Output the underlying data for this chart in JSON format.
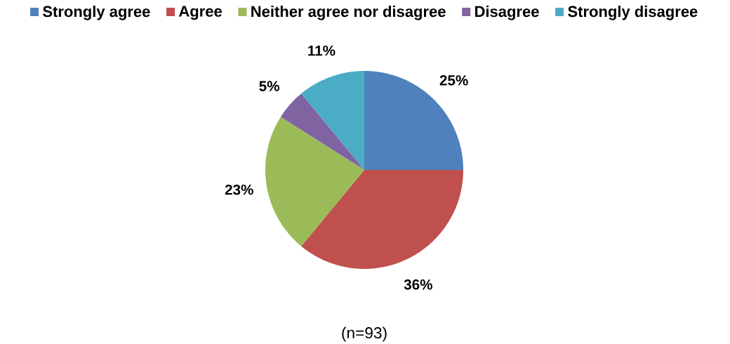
{
  "chart_data": {
    "type": "pie",
    "categories": [
      "Strongly agree",
      "Agree",
      "Neither agree nor disagree",
      "Disagree",
      "Strongly disagree"
    ],
    "values": [
      25,
      36,
      23,
      5,
      11
    ],
    "colors": [
      "#4f81bd",
      "#c0504d",
      "#9bbb59",
      "#8064a2",
      "#4bacc6"
    ],
    "value_labels": [
      "25%",
      "36%",
      "23%",
      "5%",
      "11%"
    ],
    "legend": "top",
    "annotations": [
      "(n=93)"
    ]
  }
}
